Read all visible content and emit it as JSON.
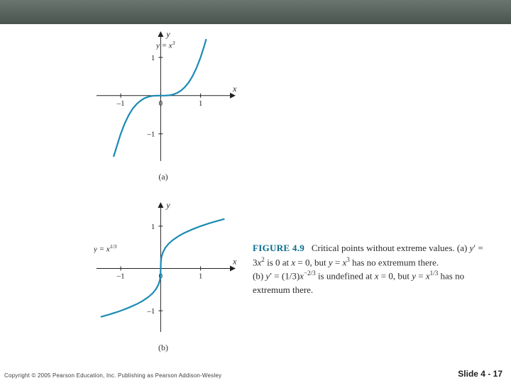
{
  "header": {
    "bg_top": "#6b756f",
    "bg_bottom": "#4a544e"
  },
  "plots": {
    "curve_color": "#1a8bb3",
    "axis_color": "#222222",
    "background": "#ffffff",
    "a": {
      "type": "line",
      "equation": "y = x³",
      "equation_plain": "y = x^3",
      "xlim": [
        -1.5,
        1.7
      ],
      "ylim": [
        -1.6,
        1.5
      ],
      "xticks": [
        -1,
        0,
        1
      ],
      "yticks": [
        -1,
        1
      ],
      "xlabel": "x",
      "ylabel": "y",
      "subfig_label": "(a)",
      "line_width": 2.2,
      "points": [
        [
          -1.18,
          -1.6
        ],
        [
          -1.1,
          -1.33
        ],
        [
          -1.0,
          -1.0
        ],
        [
          -0.9,
          -0.73
        ],
        [
          -0.8,
          -0.51
        ],
        [
          -0.7,
          -0.34
        ],
        [
          -0.6,
          -0.22
        ],
        [
          -0.5,
          -0.13
        ],
        [
          -0.4,
          -0.064
        ],
        [
          -0.3,
          -0.027
        ],
        [
          -0.2,
          -0.008
        ],
        [
          -0.1,
          -0.001
        ],
        [
          0.0,
          0.0
        ],
        [
          0.1,
          0.001
        ],
        [
          0.2,
          0.008
        ],
        [
          0.3,
          0.027
        ],
        [
          0.4,
          0.064
        ],
        [
          0.5,
          0.125
        ],
        [
          0.6,
          0.216
        ],
        [
          0.7,
          0.343
        ],
        [
          0.8,
          0.512
        ],
        [
          0.9,
          0.729
        ],
        [
          1.0,
          1.0
        ],
        [
          1.1,
          1.331
        ],
        [
          1.14,
          1.48
        ]
      ]
    },
    "b": {
      "type": "line",
      "equation": "y = x^{1/3}",
      "equation_plain": "y = x^(1/3)",
      "xlim": [
        -1.5,
        1.7
      ],
      "ylim": [
        -1.4,
        1.4
      ],
      "xticks": [
        -1,
        0,
        1
      ],
      "yticks": [
        -1,
        1
      ],
      "xlabel": "x",
      "ylabel": "y",
      "subfig_label": "(b)",
      "line_width": 2.2,
      "points": [
        [
          -1.5,
          -1.145
        ],
        [
          -1.3,
          -1.091
        ],
        [
          -1.1,
          -1.032
        ],
        [
          -1.0,
          -1.0
        ],
        [
          -0.8,
          -0.928
        ],
        [
          -0.6,
          -0.843
        ],
        [
          -0.45,
          -0.766
        ],
        [
          -0.3,
          -0.669
        ],
        [
          -0.2,
          -0.585
        ],
        [
          -0.12,
          -0.493
        ],
        [
          -0.06,
          -0.391
        ],
        [
          -0.02,
          -0.271
        ],
        [
          -0.005,
          -0.171
        ],
        [
          0.0,
          0.0
        ],
        [
          0.005,
          0.171
        ],
        [
          0.02,
          0.271
        ],
        [
          0.06,
          0.391
        ],
        [
          0.12,
          0.493
        ],
        [
          0.2,
          0.585
        ],
        [
          0.3,
          0.669
        ],
        [
          0.45,
          0.766
        ],
        [
          0.6,
          0.843
        ],
        [
          0.8,
          0.928
        ],
        [
          1.0,
          1.0
        ],
        [
          1.2,
          1.063
        ],
        [
          1.4,
          1.119
        ],
        [
          1.6,
          1.17
        ]
      ]
    }
  },
  "caption": {
    "label": "FIGURE 4.9",
    "intro": "Critical points without extreme values.",
    "part_a_pre": "(a) ",
    "part_a_eq1": "y′ = 3x²",
    "part_a_mid1": " is 0 at ",
    "part_a_eq2": "x = 0",
    "part_a_mid2": ", but ",
    "part_a_eq3": "y = x³",
    "part_a_tail": " has no extremum there.",
    "part_b_pre": "(b) ",
    "part_b_eq1": "y′ = (1/3)x^{−2/3}",
    "part_b_mid1": " is undefined at ",
    "part_b_eq2": "x = 0",
    "part_b_mid2": ", but ",
    "part_b_eq3": "y = x^{1/3}",
    "part_b_tail": " has no extremum there."
  },
  "footer": {
    "copyright": "Copyright © 2005 Pearson Education, Inc.  Publishing as Pearson Addison-Wesley",
    "slide": "Slide  4 -  17"
  }
}
